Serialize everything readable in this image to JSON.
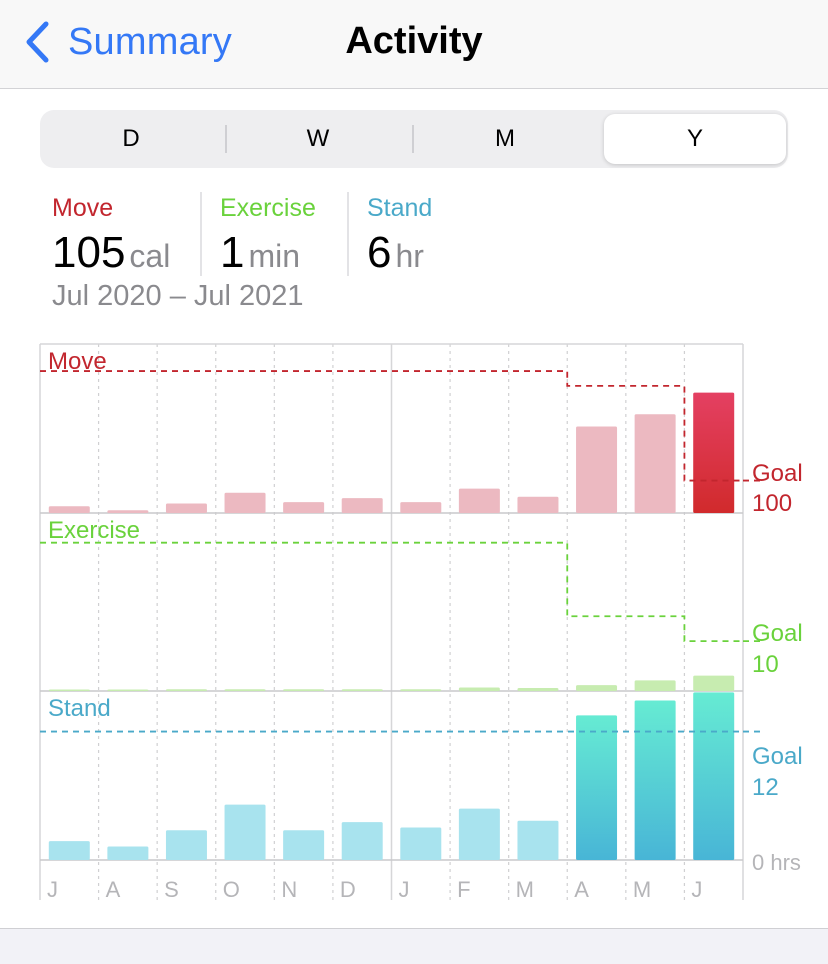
{
  "nav": {
    "back_label": "Summary",
    "title": "Activity"
  },
  "segments": [
    "D",
    "W",
    "M",
    "Y"
  ],
  "selected_segment": "Y",
  "stats": {
    "move": {
      "label": "Move",
      "value": "105",
      "unit": "cal",
      "color": "#c2262e"
    },
    "exercise": {
      "label": "Exercise",
      "value": "1",
      "unit": "min",
      "color": "#6ad23c"
    },
    "stand": {
      "label": "Stand",
      "value": "6",
      "unit": "hr",
      "color": "#4aa9c9"
    },
    "range": "Jul 2020 – Jul 2021"
  },
  "chart_data": {
    "type": "bar",
    "categories": [
      "J",
      "A",
      "S",
      "O",
      "N",
      "D",
      "J",
      "F",
      "M",
      "A",
      "M",
      "J"
    ],
    "panels": [
      {
        "title": "Move",
        "values": [
          5,
          2,
          7,
          15,
          8,
          11,
          8,
          18,
          12,
          64,
          73,
          89
        ],
        "goal": [
          105,
          105,
          105,
          105,
          105,
          105,
          105,
          105,
          105,
          94,
          94,
          24
        ],
        "goal_label": "Goal",
        "goal_value_label": "100",
        "color": "#c2262e",
        "bar_color": "#ecb9c1",
        "highlight_top": "#e44062",
        "highlight_bottom": "#d12a2c"
      },
      {
        "title": "Exercise",
        "values": [
          0.1,
          0.1,
          0.15,
          0.15,
          0.15,
          0.15,
          0.15,
          0.3,
          0.25,
          0.5,
          0.9,
          1.3
        ],
        "goal": [
          12.5,
          12.5,
          12.5,
          12.5,
          12.5,
          12.5,
          12.5,
          12.5,
          12.5,
          6.3,
          6.3,
          4.2
        ],
        "goal_label": "Goal",
        "goal_value_label": "10",
        "color": "#6ad23c",
        "bar_color": "#c7ecb0",
        "highlight_top": "#b7e89c",
        "highlight_bottom": "#b7e89c"
      },
      {
        "title": "Stand",
        "values": [
          1.4,
          1.0,
          2.2,
          4.1,
          2.2,
          2.8,
          2.4,
          3.8,
          2.9,
          10.7,
          11.8,
          12.4
        ],
        "goal": [
          9.5,
          9.5,
          9.5,
          9.5,
          9.5,
          9.5,
          9.5,
          9.5,
          9.5,
          9.5,
          9.5,
          9.5
        ],
        "goal_label": "Goal",
        "goal_value_label": "12",
        "color": "#4aa9c9",
        "bar_color": "#a8e3ee",
        "highlight_top": "#66ebd3",
        "highlight_bottom": "#48b5d6",
        "axis_zero_label": "0 hrs"
      }
    ]
  }
}
